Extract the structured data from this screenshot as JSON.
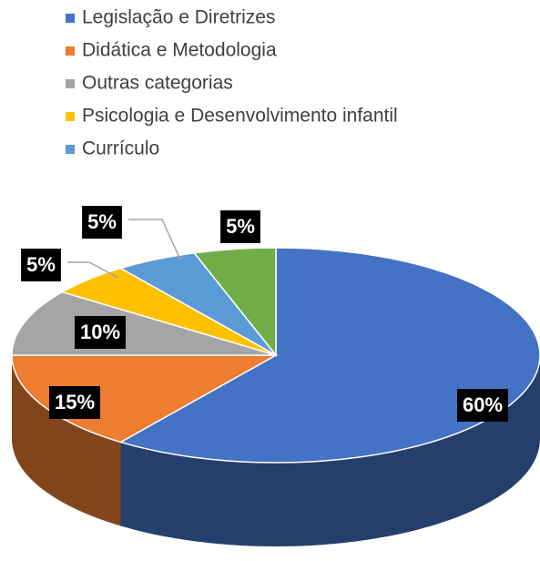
{
  "chart_data": {
    "type": "pie",
    "categories": [
      "Legislação e Diretrizes",
      "Didática e Metodologia",
      "Outras categorias",
      "Psicologia e Desenvolvimento infantil",
      "Currículo",
      null
    ],
    "values": [
      60,
      15,
      10,
      5,
      5,
      5
    ],
    "value_labels": [
      "60%",
      "15%",
      "10%",
      "5%",
      "5%",
      "5%"
    ],
    "colors": [
      "#4472c4",
      "#ed7d31",
      "#a5a5a5",
      "#ffc000",
      "#5b9bd5",
      "#70ad47"
    ],
    "legend": "top"
  }
}
